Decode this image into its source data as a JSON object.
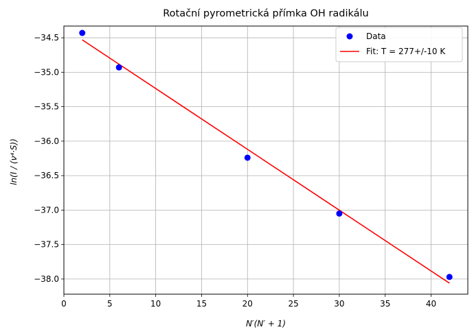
{
  "chart_data": {
    "type": "scatter",
    "title": "Rotační pyrometrická přímka OH radikálu",
    "xlabel": "N′(N′ + 1)",
    "ylabel": "ln(I / (ν⁴·S))",
    "xlim": [
      0,
      44
    ],
    "ylim": [
      -38.22,
      -34.33
    ],
    "xticks": [
      0,
      5,
      10,
      15,
      20,
      25,
      30,
      35,
      40
    ],
    "yticks": [
      -34.5,
      -35.0,
      -35.5,
      -36.0,
      -36.5,
      -37.0,
      -37.5,
      -38.0
    ],
    "xtick_labels": [
      "0",
      "5",
      "10",
      "15",
      "20",
      "25",
      "30",
      "35",
      "40"
    ],
    "ytick_labels": [
      "−34.5",
      "−35.0",
      "−35.5",
      "−36.0",
      "−36.5",
      "−37.0",
      "−37.5",
      "−38.0"
    ],
    "grid": true,
    "legend_position": "top-right",
    "series": [
      {
        "name": "Data",
        "kind": "scatter",
        "color": "#0000ff",
        "x": [
          2,
          6,
          20,
          30,
          42
        ],
        "y": [
          -34.43,
          -34.93,
          -36.24,
          -37.05,
          -37.97
        ]
      },
      {
        "name": "Fit: T = 277+/-10 K",
        "kind": "line",
        "color": "#ff0000",
        "x": [
          2,
          42
        ],
        "y": [
          -34.53,
          -38.06
        ]
      }
    ]
  }
}
